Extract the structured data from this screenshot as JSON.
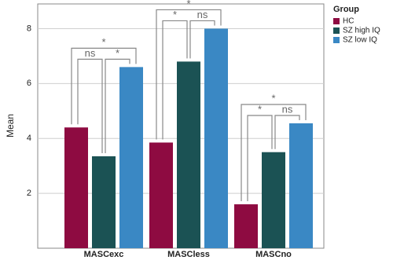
{
  "chart_data": {
    "type": "bar",
    "categories": [
      "MASCexc",
      "MASCless",
      "MASCno"
    ],
    "series": [
      {
        "name": "HC",
        "color": "#8e0b41",
        "values": [
          4.4,
          3.85,
          1.6
        ]
      },
      {
        "name": "SZ high IQ",
        "color": "#1b5254",
        "values": [
          3.35,
          6.8,
          3.5
        ]
      },
      {
        "name": "SZ low IQ",
        "color": "#3a88c4",
        "values": [
          6.6,
          8.0,
          4.55
        ]
      }
    ],
    "ylabel": "Mean",
    "ylim": [
      0,
      8.9
    ],
    "yticks": [
      2,
      4,
      6,
      8
    ],
    "grid": true,
    "legend": {
      "title": "Group",
      "position": "right"
    },
    "comparisons": [
      {
        "category": 0,
        "series": [
          0,
          1
        ],
        "label": "ns"
      },
      {
        "category": 0,
        "series": [
          1,
          2
        ],
        "label": "*"
      },
      {
        "category": 0,
        "series": [
          0,
          2
        ],
        "label": "*"
      },
      {
        "category": 1,
        "series": [
          0,
          1
        ],
        "label": "*"
      },
      {
        "category": 1,
        "series": [
          1,
          2
        ],
        "label": "ns"
      },
      {
        "category": 1,
        "series": [
          0,
          2
        ],
        "label": "*"
      },
      {
        "category": 2,
        "series": [
          0,
          1
        ],
        "label": "*"
      },
      {
        "category": 2,
        "series": [
          1,
          2
        ],
        "label": "ns"
      },
      {
        "category": 2,
        "series": [
          0,
          2
        ],
        "label": "*"
      }
    ]
  }
}
